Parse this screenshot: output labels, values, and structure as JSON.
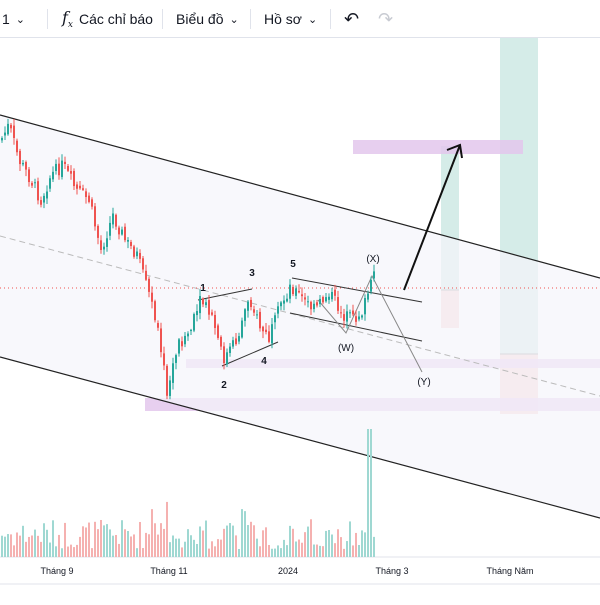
{
  "toolbar": {
    "interval_label": "1",
    "indicators_label": "Các chỉ báo",
    "chart_label": "Biểu đồ",
    "profile_label": "Hồ sơ"
  },
  "chart_data": {
    "type": "candlestick",
    "x_tick_labels": [
      "Tháng 9",
      "Tháng 11",
      "2024",
      "Tháng 3",
      "Tháng Năm"
    ],
    "wave_labels": [
      "1",
      "2",
      "3",
      "4",
      "5",
      "(X)",
      "(W)",
      "(Y)"
    ],
    "colors": {
      "up": "#26a69a",
      "down": "#ef5350",
      "zone": "#e1bee7",
      "target": "#b2dfdb",
      "stop": "#f8c8c8"
    }
  }
}
